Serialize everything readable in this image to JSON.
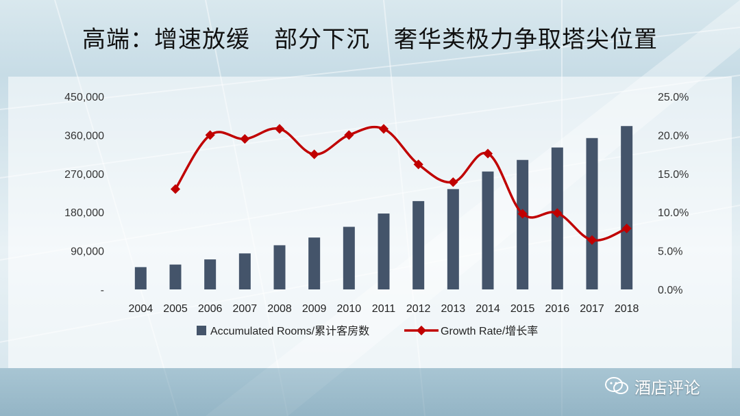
{
  "title": "高端：增速放缓　部分下沉　奢华类极力争取塔尖位置",
  "watermark": {
    "text": "酒店评论",
    "icon": "wechat-icon"
  },
  "colors": {
    "bar": "#44546a",
    "line": "#c00000",
    "marker": "#c00000"
  },
  "chart_data": {
    "type": "bar",
    "categories": [
      "2004",
      "2005",
      "2006",
      "2007",
      "2008",
      "2009",
      "2010",
      "2011",
      "2012",
      "2013",
      "2014",
      "2015",
      "2016",
      "2017",
      "2018"
    ],
    "series": [
      {
        "name": "Accumulated Rooms/累计客房数",
        "type": "bar",
        "axis": "left",
        "values": [
          52000,
          58000,
          70000,
          84000,
          103000,
          121000,
          146000,
          177000,
          206000,
          234000,
          275000,
          302000,
          331000,
          353000,
          381000
        ]
      },
      {
        "name": "Growth Rate/增长率",
        "type": "line",
        "axis": "right",
        "values": [
          null,
          13.0,
          20.0,
          19.5,
          20.8,
          17.5,
          20.0,
          20.8,
          16.2,
          13.9,
          17.6,
          9.8,
          9.9,
          6.4,
          7.9
        ]
      }
    ],
    "y_left": {
      "ylim": [
        0,
        450000
      ],
      "ticks": [
        "-",
        "90,000",
        "180,000",
        "270,000",
        "360,000",
        "450,000"
      ]
    },
    "y_right": {
      "ylim": [
        0,
        25
      ],
      "ticks": [
        "0.0%",
        "5.0%",
        "10.0%",
        "15.0%",
        "20.0%",
        "25.0%"
      ]
    },
    "legend": {
      "placement": "bottom"
    },
    "grid": false
  }
}
